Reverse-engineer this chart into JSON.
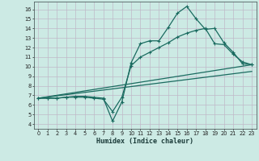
{
  "xlabel": "Humidex (Indice chaleur)",
  "bg_color": "#cceae4",
  "grid_color_major": "#c0b8c8",
  "line_color": "#1a6b60",
  "xlim": [
    -0.5,
    23.5
  ],
  "ylim": [
    3.5,
    16.8
  ],
  "xticks": [
    0,
    1,
    2,
    3,
    4,
    5,
    6,
    7,
    8,
    9,
    10,
    11,
    12,
    13,
    14,
    15,
    16,
    17,
    18,
    19,
    20,
    21,
    22,
    23
  ],
  "yticks": [
    4,
    5,
    6,
    7,
    8,
    9,
    10,
    11,
    12,
    13,
    14,
    15,
    16
  ],
  "line1_x": [
    0,
    1,
    2,
    3,
    4,
    5,
    6,
    7,
    8,
    9,
    10,
    11,
    12,
    13,
    14,
    15,
    16,
    17,
    18,
    19,
    20,
    21,
    22,
    23
  ],
  "line1_y": [
    6.7,
    6.7,
    6.7,
    6.8,
    6.9,
    6.9,
    6.8,
    6.7,
    4.3,
    6.3,
    10.4,
    12.4,
    12.7,
    12.7,
    14.1,
    15.6,
    16.3,
    15.0,
    13.9,
    14.0,
    12.5,
    11.5,
    10.3,
    10.2
  ],
  "line2_x": [
    0,
    1,
    2,
    3,
    4,
    5,
    6,
    7,
    8,
    9,
    10,
    11,
    12,
    13,
    14,
    15,
    16,
    17,
    18,
    19,
    20,
    21,
    22,
    23
  ],
  "line2_y": [
    6.7,
    6.7,
    6.7,
    6.8,
    6.8,
    6.8,
    6.7,
    6.6,
    5.3,
    6.8,
    10.1,
    11.0,
    11.5,
    12.0,
    12.5,
    13.1,
    13.5,
    13.8,
    14.0,
    12.4,
    12.3,
    11.3,
    10.5,
    10.2
  ],
  "line3_x": [
    0,
    23
  ],
  "line3_y": [
    6.7,
    10.2
  ],
  "line4_x": [
    0,
    23
  ],
  "line4_y": [
    6.7,
    9.5
  ]
}
